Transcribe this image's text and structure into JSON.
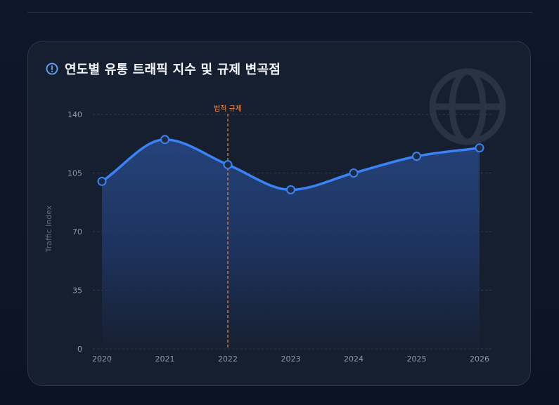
{
  "page": {
    "title": "연도별 유통 트래픽 지수 및 규제 변곡점"
  },
  "icons": {
    "header": "info-circle-icon",
    "watermark": "globe-icon"
  },
  "colors": {
    "line": "#3b82f6",
    "area_top": "#2a4a8a",
    "annotation": "#f08a4b",
    "grid": "#2f3a4d",
    "point_fill": "#1e2a40"
  },
  "chart_data": {
    "type": "area",
    "title": "연도별 유통 트래픽 지수 및 규제 변곡점",
    "xlabel": "",
    "ylabel": "Traffic Index",
    "categories": [
      "2020",
      "2021",
      "2022",
      "2023",
      "2024",
      "2025",
      "2026"
    ],
    "series": [
      {
        "values": [
          100,
          125,
          110,
          95,
          105,
          115,
          120
        ]
      }
    ],
    "ylim": [
      0,
      140
    ],
    "yticks": [
      0,
      35,
      70,
      105,
      140
    ],
    "grid": true,
    "annotations": [
      {
        "x": "2022",
        "label": "법적 규제",
        "style": "dashed-vertical-line"
      }
    ]
  }
}
